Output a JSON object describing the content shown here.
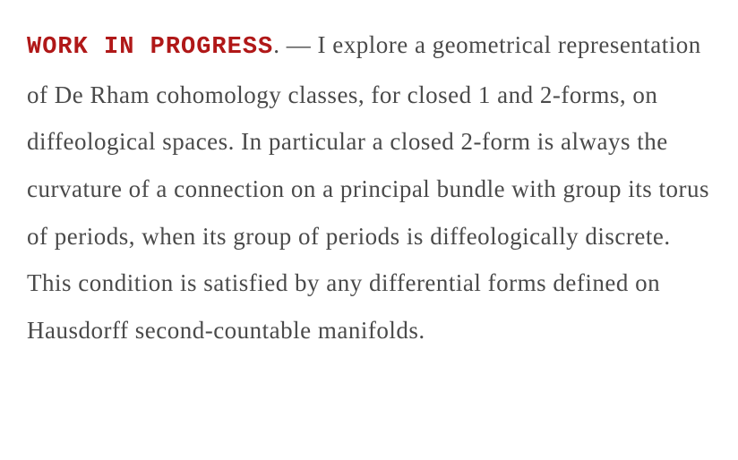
{
  "abstract": {
    "wip_label": "WORK IN PROGRESS",
    "separator": ". — ",
    "body": "I explore a geometrical representation of De Rham cohomology classes, for closed 1 and 2-forms, on diffeological spaces. In particular a closed 2-form is always the curvature of a connection on a principal bundle with group its torus of periods, when its group of periods is diffeologically discrete. This condition is satisfied by any differential forms defined on Hausdorff second-countable manifolds.",
    "wip_color": "#b01818",
    "body_color": "#4a4a4a",
    "background_color": "#ffffff",
    "font_size_pt": 20,
    "line_height": 1.95,
    "font_family": "handwritten-cursive",
    "wip_font_family": "monospace-typewriter"
  }
}
